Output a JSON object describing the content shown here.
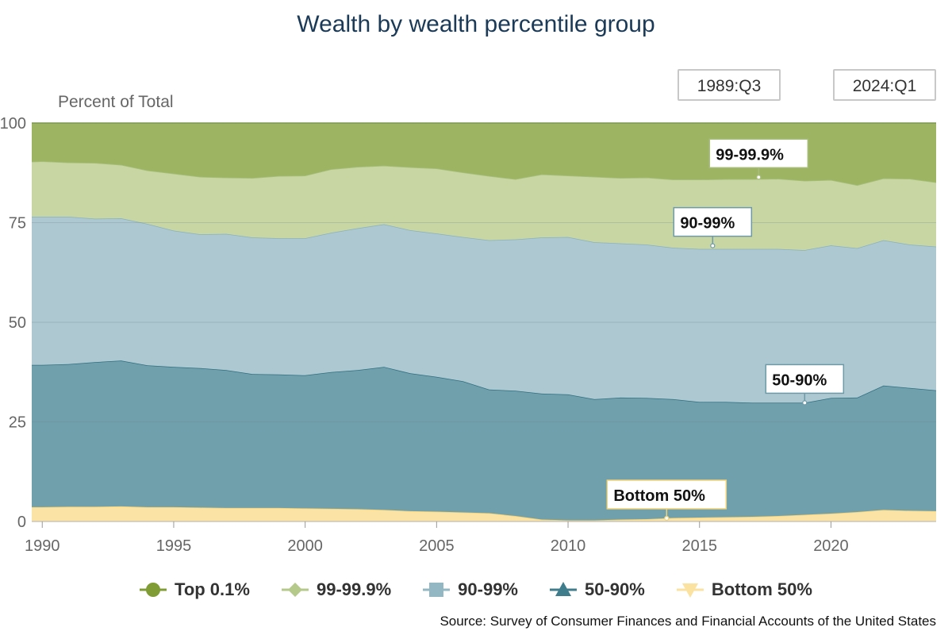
{
  "title": "Wealth by wealth percentile group",
  "range": {
    "start": "1989:Q3",
    "end": "2024:Q1"
  },
  "source": "Source: Survey of Consumer Finances and Financial Accounts of the United States",
  "colors": {
    "top01": "#9db563",
    "p99_999": "#c8d6a4",
    "p90_99": "#adc8d1",
    "p50_90": "#6fa0ac",
    "bottom50": "#fbe3a6"
  },
  "chart_data": {
    "type": "area",
    "stacked": true,
    "title": "Wealth by wealth percentile group",
    "ylabel": "Percent of Total",
    "xlabel": "",
    "ylim": [
      0,
      100
    ],
    "xlim": [
      1989.6,
      2024.0
    ],
    "yticks": [
      "0",
      "25",
      "50",
      "75",
      "100"
    ],
    "xticks": [
      "1990",
      "1995",
      "2000",
      "2005",
      "2010",
      "2015",
      "2020"
    ],
    "grid": true,
    "legend_position": "bottom",
    "x": [
      1989.6,
      1990.0,
      1991.0,
      1992.0,
      1993.0,
      1994.0,
      1995.0,
      1996.0,
      1997.0,
      1998.0,
      1999.0,
      2000.0,
      2001.0,
      2002.0,
      2003.0,
      2004.0,
      2005.0,
      2006.0,
      2007.0,
      2008.0,
      2009.0,
      2010.0,
      2011.0,
      2012.0,
      2013.0,
      2014.0,
      2015.0,
      2016.0,
      2017.0,
      2018.0,
      2019.0,
      2020.0,
      2021.0,
      2022.0,
      2023.0,
      2024.0
    ],
    "series": [
      {
        "name": "Bottom 50%",
        "marker": "triangle-down",
        "values": [
          3.6,
          3.6,
          3.7,
          3.7,
          3.8,
          3.6,
          3.6,
          3.5,
          3.4,
          3.4,
          3.4,
          3.3,
          3.2,
          3.1,
          2.9,
          2.6,
          2.5,
          2.3,
          2.1,
          1.4,
          0.5,
          0.3,
          0.3,
          0.5,
          0.6,
          0.9,
          1.0,
          1.1,
          1.2,
          1.4,
          1.7,
          2.0,
          2.4,
          2.9,
          2.7,
          2.6
        ]
      },
      {
        "name": "50-90%",
        "marker": "triangle",
        "values": [
          35.7,
          35.7,
          35.8,
          36.3,
          36.6,
          35.6,
          35.2,
          35.0,
          34.6,
          33.6,
          33.5,
          33.4,
          34.3,
          34.9,
          35.9,
          34.6,
          33.8,
          32.9,
          31.0,
          31.4,
          31.6,
          31.6,
          30.4,
          30.6,
          30.4,
          29.8,
          29.0,
          28.9,
          28.6,
          28.4,
          28.1,
          29.0,
          28.7,
          31.2,
          30.8,
          30.3
        ]
      },
      {
        "name": "90-99%",
        "marker": "square",
        "values": [
          37.2,
          37.2,
          37.0,
          36.0,
          35.7,
          35.5,
          34.2,
          33.6,
          34.2,
          34.3,
          34.2,
          34.4,
          35.0,
          35.6,
          35.8,
          35.9,
          36.0,
          36.2,
          37.5,
          38.0,
          39.2,
          39.5,
          39.4,
          38.7,
          38.5,
          38.0,
          38.4,
          38.4,
          38.6,
          38.6,
          38.3,
          38.3,
          37.5,
          36.5,
          36.0,
          36.1
        ]
      },
      {
        "name": "99-99.9%",
        "marker": "diamond",
        "values": [
          13.8,
          13.9,
          13.6,
          14.0,
          13.4,
          13.4,
          14.3,
          14.4,
          14.1,
          14.9,
          15.6,
          15.7,
          15.9,
          15.4,
          14.7,
          15.8,
          16.3,
          16.2,
          16.1,
          15.1,
          15.8,
          15.4,
          16.4,
          16.4,
          16.8,
          17.1,
          17.4,
          17.5,
          17.5,
          17.6,
          17.4,
          16.4,
          15.8,
          15.5,
          16.5,
          16.1
        ]
      },
      {
        "name": "Top 0.1%",
        "marker": "circle",
        "values": [
          9.7,
          9.6,
          9.9,
          10.0,
          10.5,
          11.9,
          12.7,
          13.5,
          13.7,
          13.8,
          13.3,
          13.2,
          11.6,
          11.0,
          10.7,
          11.1,
          11.4,
          12.4,
          13.3,
          14.1,
          12.9,
          13.2,
          13.5,
          13.8,
          13.7,
          14.2,
          14.2,
          14.1,
          14.1,
          14.0,
          14.5,
          14.3,
          15.6,
          13.9,
          14.0,
          14.9
        ]
      }
    ],
    "annotations": [
      {
        "label": "99-99.9%",
        "x": 2017.25,
        "y": 86.4
      },
      {
        "label": "90-99%",
        "x": 2015.5,
        "y": 69.2
      },
      {
        "label": "50-90%",
        "x": 2019.0,
        "y": 29.8
      },
      {
        "label": "Bottom 50%",
        "x": 2013.75,
        "y": 0.8
      }
    ]
  }
}
